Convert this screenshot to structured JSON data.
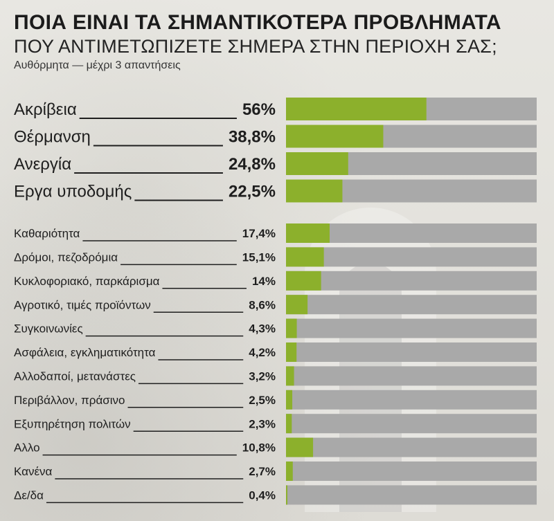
{
  "header": {
    "title": "ΠΟΙΑ ΕΙΝΑΙ ΤΑ ΣΗΜΑΝΤΙΚΟΤΕΡΑ ΠΡΟΒΛΗΜΑΤΑ",
    "subtitle": "ΠΟΥ ΑΝΤΙΜΕΤΩΠΙΖΕΤΕ ΣΗΜΕΡΑ ΣΤΗΝ ΠΕΡΙΟΧΗ ΣΑΣ;",
    "note": "Αυθόρμητα — μέχρι 3 απαντήσεις"
  },
  "colors": {
    "bar_fill": "#8cb02c",
    "bar_track": "#a9a9a9",
    "text": "#1e1e1e",
    "background": "#e3e2dc"
  },
  "chart_data": {
    "type": "bar",
    "orientation": "horizontal",
    "xlim": [
      0,
      100
    ],
    "categories": [
      "Ακρίβεια",
      "Θέρμανση",
      "Ανεργία",
      "Εργα υποδομής",
      "Καθαριότητα",
      "Δρόμοι, πεζοδρόμια",
      "Κυκλοφοριακό, παρκάρισμα",
      "Αγροτικό, τιμές προϊόντων",
      "Συγκοινωνίες",
      "Ασφάλεια, εγκληματικότητα",
      "Αλλοδαποί, μετανάστες",
      "Περιβάλλον, πράσινο",
      "Εξυπηρέτηση πολιτών",
      "Αλλο",
      "Κανένα",
      "Δε/δα"
    ],
    "values": [
      56,
      38.8,
      24.8,
      22.5,
      17.4,
      15.1,
      14,
      8.6,
      4.3,
      4.2,
      3.2,
      2.5,
      2.3,
      10.8,
      2.7,
      0.4
    ],
    "value_labels": [
      "56%",
      "38,8%",
      "24,8%",
      "22,5%",
      "17,4%",
      "15,1%",
      "14%",
      "8,6%",
      "4,3%",
      "4,2%",
      "3,2%",
      "2,5%",
      "2,3%",
      "10,8%",
      "2,7%",
      "0,4%"
    ],
    "emphasis": [
      "large",
      "large",
      "large",
      "large",
      "small",
      "small",
      "small",
      "small",
      "small",
      "small",
      "small",
      "small",
      "small",
      "small",
      "small",
      "small"
    ]
  }
}
